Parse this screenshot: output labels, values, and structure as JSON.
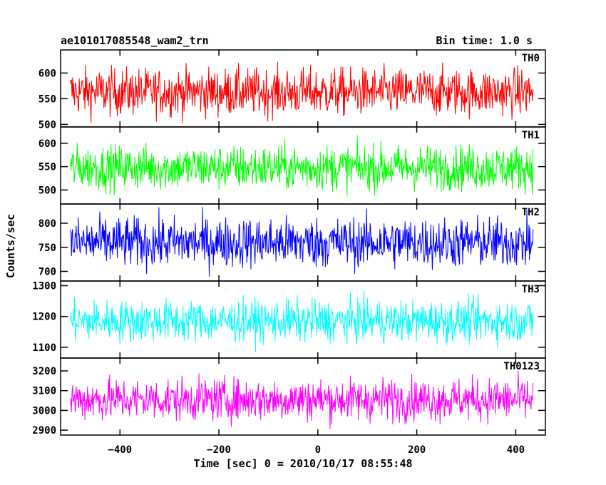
{
  "chart_data": {
    "type": "line",
    "title": "ae101017085548_wam2_trn",
    "subtitle": "Bin time: 1.0 s",
    "xlabel": "Time [sec] 0 = 2010/10/17 08:55:48",
    "ylabel": "Counts/sec",
    "xlim": [
      -520,
      460
    ],
    "x_range": [
      -500,
      435
    ],
    "x_ticks": [
      -400,
      -200,
      0,
      200,
      400
    ],
    "x_tick_labels": [
      "−400",
      "−200",
      "0",
      "200",
      "400"
    ],
    "grid": false,
    "panels": [
      {
        "name": "TH0",
        "color": "#ff0000",
        "ylim": [
          495,
          645
        ],
        "y_ticks": [
          500,
          550,
          600
        ],
        "mean": 563,
        "spread": 60
      },
      {
        "name": "TH1",
        "color": "#00ff00",
        "ylim": [
          470,
          635
        ],
        "y_ticks": [
          500,
          550,
          600
        ],
        "mean": 548,
        "spread": 62
      },
      {
        "name": "TH2",
        "color": "#0000ff",
        "ylim": [
          680,
          840
        ],
        "y_ticks": [
          700,
          750,
          800
        ],
        "mean": 760,
        "spread": 68
      },
      {
        "name": "TH3",
        "color": "#00ffff",
        "ylim": [
          1065,
          1315
        ],
        "y_ticks": [
          1100,
          1200,
          1300
        ],
        "mean": 1185,
        "spread": 88
      },
      {
        "name": "TH0123",
        "color": "#ff00ff",
        "ylim": [
          2875,
          3265
        ],
        "y_ticks": [
          2900,
          3000,
          3100,
          3200
        ],
        "mean": 3055,
        "spread": 140
      }
    ]
  }
}
